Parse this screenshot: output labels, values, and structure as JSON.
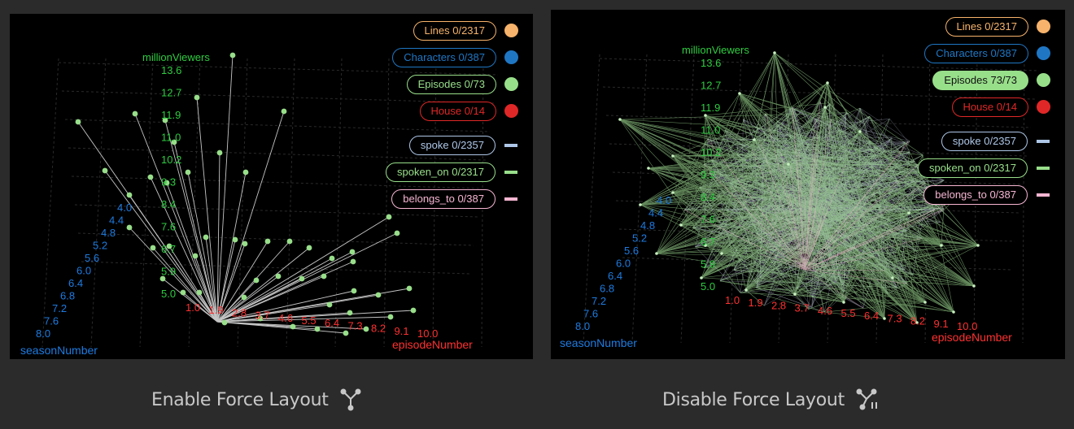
{
  "panels": [
    {
      "id": "left",
      "legend": [
        {
          "label": "Lines 0/2317",
          "color": "#f7b36b",
          "kind": "node",
          "active": false
        },
        {
          "label": "Characters 0/387",
          "color": "#1f77c4",
          "kind": "node",
          "active": false
        },
        {
          "label": "Episodes 0/73",
          "color": "#98df8a",
          "kind": "node",
          "active": false
        },
        {
          "label": "House 0/14",
          "color": "#e02727",
          "kind": "node",
          "active": false
        },
        {
          "label": "spoke 0/2357",
          "color": "#aec7e8",
          "kind": "edge",
          "active": false
        },
        {
          "label": "spoken_on 0/2317",
          "color": "#98df8a",
          "kind": "edge",
          "active": false
        },
        {
          "label": "belongs_to 0/387",
          "color": "#f7b6d2",
          "kind": "edge",
          "active": false
        }
      ]
    },
    {
      "id": "right",
      "legend": [
        {
          "label": "Lines 0/2317",
          "color": "#f7b36b",
          "kind": "node",
          "active": false
        },
        {
          "label": "Characters 0/387",
          "color": "#1f77c4",
          "kind": "node",
          "active": false
        },
        {
          "label": "Episodes 73/73",
          "color": "#98df8a",
          "kind": "node",
          "active": true
        },
        {
          "label": "House 0/14",
          "color": "#e02727",
          "kind": "node",
          "active": false
        },
        {
          "label": "spoke 0/2357",
          "color": "#aec7e8",
          "kind": "edge",
          "active": false
        },
        {
          "label": "spoken_on 0/2317",
          "color": "#98df8a",
          "kind": "edge",
          "active": false
        },
        {
          "label": "belongs_to 0/387",
          "color": "#f7b6d2",
          "kind": "edge",
          "active": false
        }
      ]
    }
  ],
  "axes": {
    "y": {
      "label": "millionViewers",
      "color": "#2ecc40",
      "ticks": [
        "13.6",
        "12.7",
        "11.9",
        "11.0",
        "10.2",
        "9.3",
        "8.4",
        "7.6",
        "6.7",
        "5.9",
        "5.0"
      ]
    },
    "x": {
      "label": "episodeNumber",
      "color": "#ff3030",
      "ticks": [
        "1.0",
        "1.9",
        "2.8",
        "3.7",
        "4.6",
        "5.5",
        "6.4",
        "7.3",
        "8.2",
        "9.1",
        "10.0"
      ]
    },
    "z": {
      "label": "seasonNumber",
      "color": "#1e7be0",
      "ticks": [
        "8.0",
        "7.6",
        "7.2",
        "6.8",
        "6.4",
        "6.0",
        "5.6",
        "5.2",
        "4.8",
        "4.4",
        "4.0"
      ]
    }
  },
  "buttons": {
    "enable": {
      "label": "Enable Force Layout",
      "icon": "force-layout-icon"
    },
    "disable": {
      "label": "Disable Force Layout",
      "icon": "force-layout-pause-icon"
    }
  }
}
